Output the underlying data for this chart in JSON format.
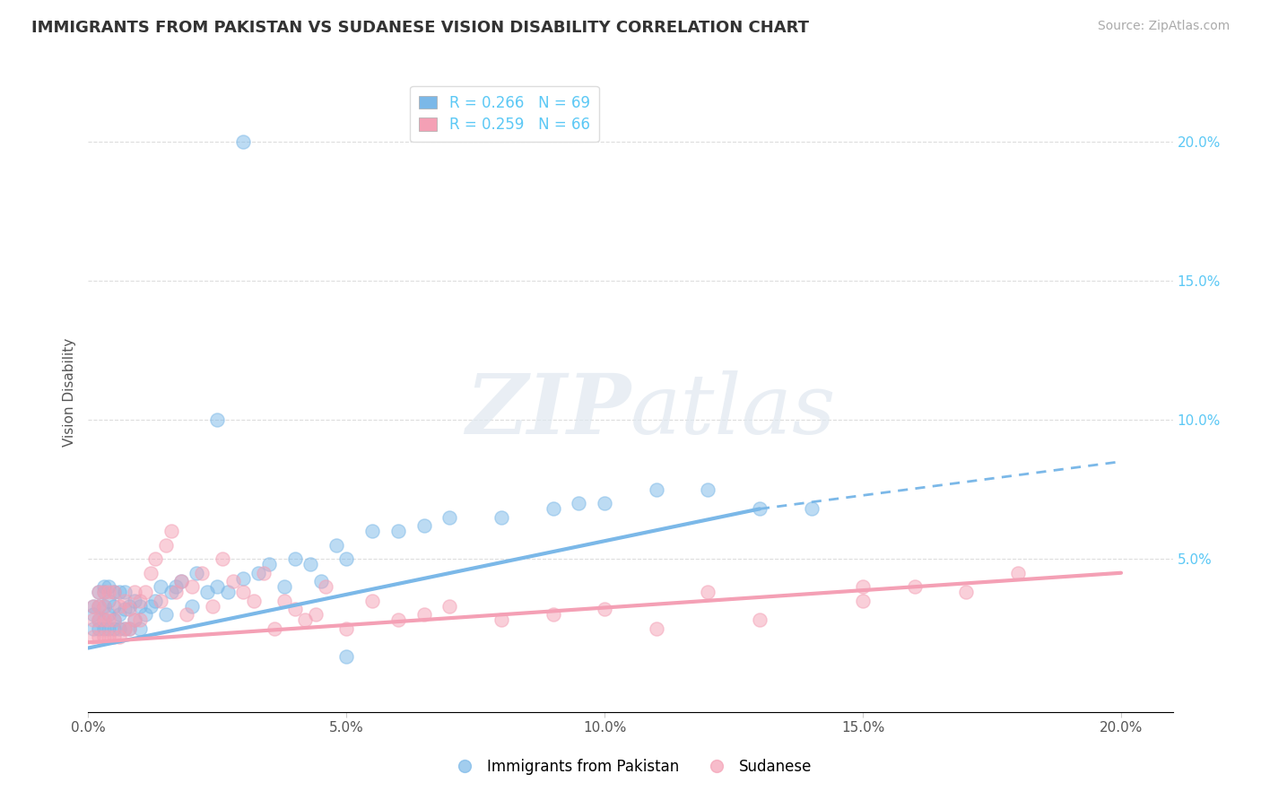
{
  "title": "IMMIGRANTS FROM PAKISTAN VS SUDANESE VISION DISABILITY CORRELATION CHART",
  "source": "Source: ZipAtlas.com",
  "ylabel": "Vision Disability",
  "xlim": [
    0.0,
    0.21
  ],
  "ylim": [
    -0.005,
    0.225
  ],
  "xticks": [
    0.0,
    0.05,
    0.1,
    0.15,
    0.2
  ],
  "yticks_right": [
    0.05,
    0.1,
    0.15,
    0.2
  ],
  "pakistan_color": "#7bb8e8",
  "sudanese_color": "#f4a0b5",
  "pakistan_R": 0.266,
  "pakistan_N": 69,
  "sudanese_R": 0.259,
  "sudanese_N": 66,
  "pakistan_line_solid_end": 0.13,
  "pakistan_line_x0": 0.0,
  "pakistan_line_y0": 0.018,
  "pakistan_line_y_at_solid_end": 0.068,
  "pakistan_line_y_at_020": 0.085,
  "sudanese_line_x0": 0.0,
  "sudanese_line_y0": 0.02,
  "sudanese_line_y_at_020": 0.045,
  "pakistan_scatter_x": [
    0.001,
    0.001,
    0.001,
    0.002,
    0.002,
    0.002,
    0.002,
    0.003,
    0.003,
    0.003,
    0.003,
    0.003,
    0.004,
    0.004,
    0.004,
    0.004,
    0.005,
    0.005,
    0.005,
    0.005,
    0.006,
    0.006,
    0.006,
    0.007,
    0.007,
    0.007,
    0.008,
    0.008,
    0.009,
    0.009,
    0.01,
    0.01,
    0.011,
    0.012,
    0.013,
    0.014,
    0.015,
    0.016,
    0.017,
    0.018,
    0.02,
    0.021,
    0.023,
    0.025,
    0.027,
    0.03,
    0.033,
    0.035,
    0.038,
    0.04,
    0.043,
    0.045,
    0.048,
    0.05,
    0.055,
    0.06,
    0.065,
    0.07,
    0.08,
    0.09,
    0.095,
    0.1,
    0.11,
    0.12,
    0.13,
    0.14,
    0.025,
    0.05,
    0.03
  ],
  "pakistan_scatter_y": [
    0.025,
    0.03,
    0.033,
    0.025,
    0.028,
    0.033,
    0.038,
    0.025,
    0.028,
    0.033,
    0.038,
    0.04,
    0.025,
    0.03,
    0.035,
    0.04,
    0.025,
    0.028,
    0.033,
    0.038,
    0.025,
    0.03,
    0.038,
    0.025,
    0.032,
    0.038,
    0.025,
    0.033,
    0.028,
    0.035,
    0.025,
    0.033,
    0.03,
    0.033,
    0.035,
    0.04,
    0.03,
    0.038,
    0.04,
    0.042,
    0.033,
    0.045,
    0.038,
    0.04,
    0.038,
    0.043,
    0.045,
    0.048,
    0.04,
    0.05,
    0.048,
    0.042,
    0.055,
    0.05,
    0.06,
    0.06,
    0.062,
    0.065,
    0.065,
    0.068,
    0.07,
    0.07,
    0.075,
    0.075,
    0.068,
    0.068,
    0.1,
    0.015,
    0.2
  ],
  "sudanese_scatter_x": [
    0.001,
    0.001,
    0.001,
    0.002,
    0.002,
    0.002,
    0.002,
    0.003,
    0.003,
    0.003,
    0.003,
    0.004,
    0.004,
    0.004,
    0.005,
    0.005,
    0.005,
    0.006,
    0.006,
    0.007,
    0.007,
    0.008,
    0.008,
    0.009,
    0.009,
    0.01,
    0.01,
    0.011,
    0.012,
    0.013,
    0.014,
    0.015,
    0.016,
    0.017,
    0.018,
    0.019,
    0.02,
    0.022,
    0.024,
    0.026,
    0.028,
    0.03,
    0.032,
    0.034,
    0.036,
    0.038,
    0.04,
    0.042,
    0.044,
    0.046,
    0.05,
    0.055,
    0.06,
    0.065,
    0.07,
    0.08,
    0.09,
    0.1,
    0.11,
    0.12,
    0.13,
    0.15,
    0.16,
    0.17,
    0.18,
    0.15
  ],
  "sudanese_scatter_y": [
    0.022,
    0.028,
    0.033,
    0.022,
    0.028,
    0.033,
    0.038,
    0.022,
    0.028,
    0.033,
    0.038,
    0.022,
    0.028,
    0.038,
    0.022,
    0.028,
    0.038,
    0.022,
    0.033,
    0.025,
    0.035,
    0.025,
    0.032,
    0.028,
    0.038,
    0.028,
    0.035,
    0.038,
    0.045,
    0.05,
    0.035,
    0.055,
    0.06,
    0.038,
    0.042,
    0.03,
    0.04,
    0.045,
    0.033,
    0.05,
    0.042,
    0.038,
    0.035,
    0.045,
    0.025,
    0.035,
    0.032,
    0.028,
    0.03,
    0.04,
    0.025,
    0.035,
    0.028,
    0.03,
    0.033,
    0.028,
    0.03,
    0.032,
    0.025,
    0.038,
    0.028,
    0.035,
    0.04,
    0.038,
    0.045,
    0.04
  ],
  "watermark_zip": "ZIP",
  "watermark_atlas": "atlas",
  "background_color": "#ffffff",
  "grid_color": "#dddddd"
}
